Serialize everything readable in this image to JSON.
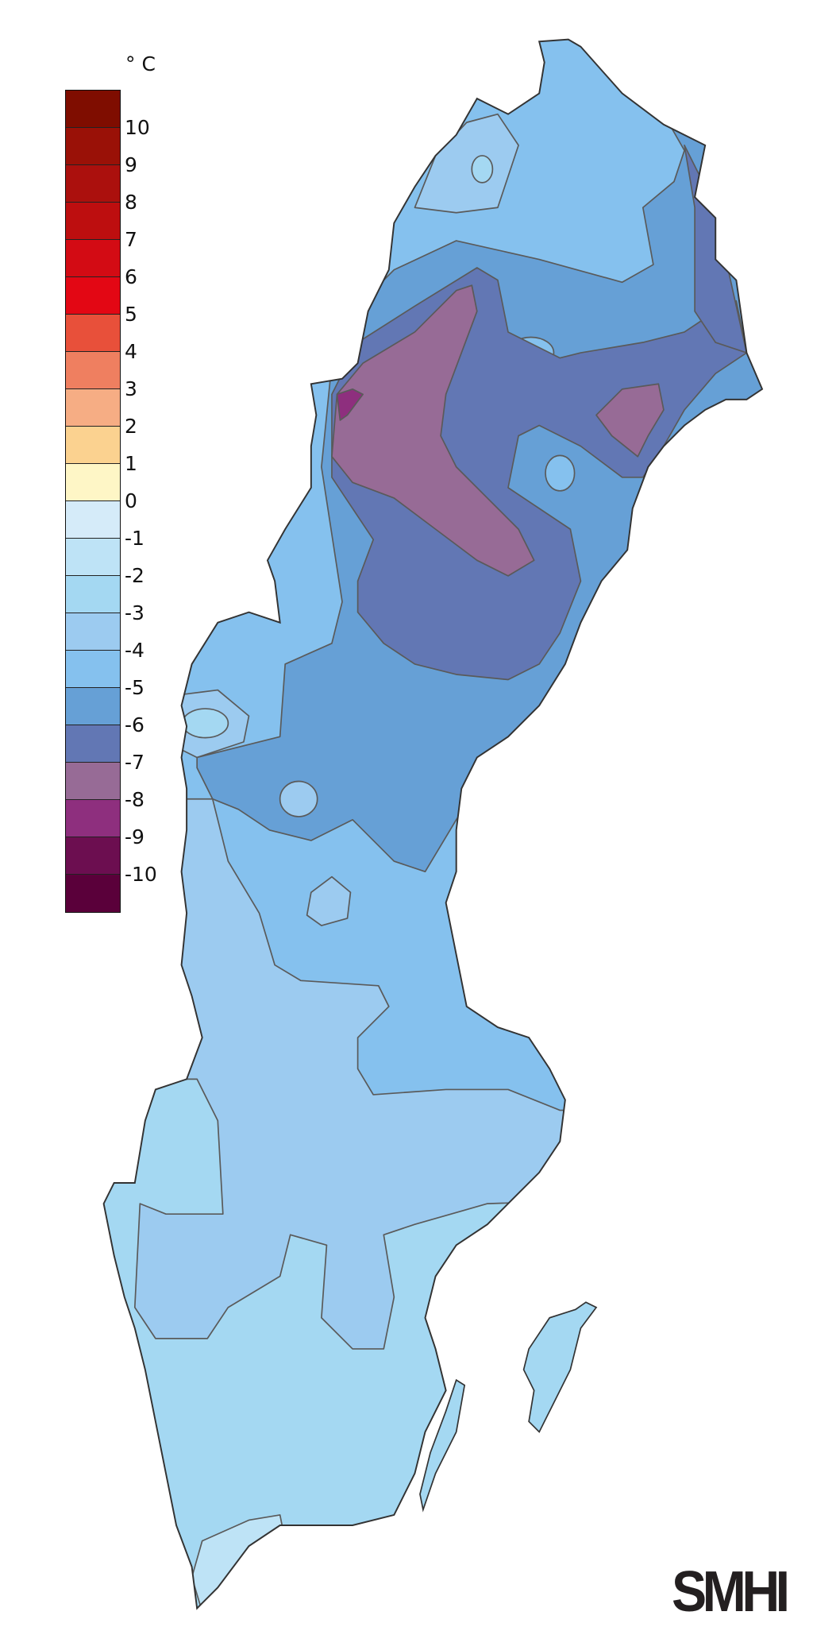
{
  "legend": {
    "unit": "° C",
    "colors": [
      "#7f0d00",
      "#9a1107",
      "#ab100d",
      "#bd0e0f",
      "#d30b14",
      "#e30714",
      "#e8503a",
      "#ef7f60",
      "#f6ad84",
      "#fbd290",
      "#fef6c6",
      "#d5ebf9",
      "#bee3f6",
      "#a4d8f2",
      "#9ccbf0",
      "#85c1ee",
      "#66a0d6",
      "#6277b4",
      "#976b96",
      "#8e2f7e",
      "#6c0e50",
      "#5a003a"
    ],
    "labels": [
      "10",
      "9",
      "8",
      "7",
      "6",
      "5",
      "4",
      "3",
      "2",
      "1",
      "0",
      "-1",
      "-2",
      "-3",
      "-4",
      "-5",
      "-6",
      "-7",
      "-8",
      "-9",
      "-10"
    ]
  },
  "map": {
    "region": "Sweden",
    "colors": {
      "outline": "#333333",
      "contour": "#5a5a5a",
      "level_m3": "#a4d8f2",
      "level_m4": "#9ccbf0",
      "level_m5": "#85c1ee",
      "level_m6": "#66a0d6",
      "level_m7": "#6277b4",
      "level_m8": "#976b96",
      "level_m9": "#8e2f7e",
      "level_m2": "#bee3f6"
    }
  },
  "logo": {
    "text": "SMHI"
  }
}
